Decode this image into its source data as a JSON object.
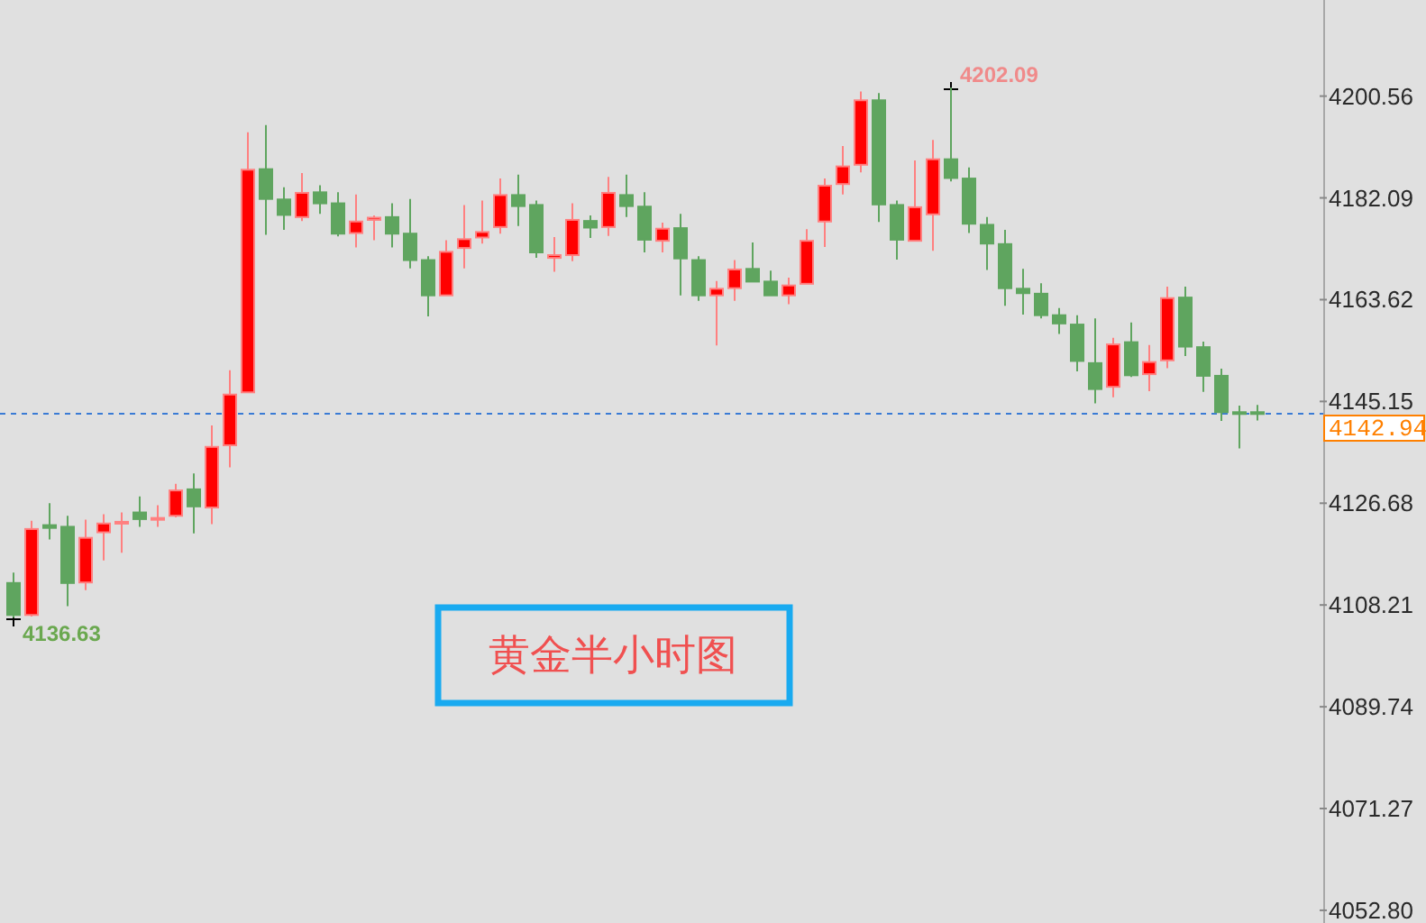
{
  "chart_data": {
    "type": "candlestick",
    "title": "黄金半小时图",
    "categories": [
      null,
      null,
      null,
      null,
      null,
      null,
      null,
      null,
      null,
      null,
      null,
      null,
      null,
      null,
      null,
      null,
      null,
      null,
      null,
      null,
      null,
      null,
      null,
      null,
      null,
      null,
      null,
      null,
      null,
      null,
      null,
      null,
      null,
      null,
      null,
      null,
      null,
      null,
      null,
      null,
      null,
      null,
      null,
      null,
      null,
      null,
      null,
      null,
      null,
      null,
      null,
      null,
      null,
      null,
      null,
      null,
      null,
      null,
      null,
      null,
      null,
      null,
      null,
      null,
      null,
      null,
      null,
      null,
      null,
      null
    ],
    "ohlc": [
      [
        4112.2,
        4114.1,
        4105.9,
        4106.4
      ],
      [
        4106.4,
        4123.5,
        4106.1,
        4122.0
      ],
      [
        4122.7,
        4126.7,
        4120.1,
        4122.2
      ],
      [
        4122.4,
        4124.4,
        4108.0,
        4112.2
      ],
      [
        4112.3,
        4123.7,
        4110.9,
        4120.4
      ],
      [
        4121.4,
        4124.7,
        4116.3,
        4123.0
      ],
      [
        4123.0,
        4125.0,
        4117.7,
        4123.3
      ],
      [
        4125.0,
        4127.9,
        4122.4,
        4123.8
      ],
      [
        4123.9,
        4126.3,
        4122.4,
        4124.0
      ],
      [
        4124.4,
        4130.2,
        4124.1,
        4129.0
      ],
      [
        4129.2,
        4132.1,
        4121.2,
        4126.1
      ],
      [
        4125.9,
        4140.8,
        4122.9,
        4136.9
      ],
      [
        4137.2,
        4150.8,
        4133.2,
        4146.4
      ],
      [
        4146.8,
        4194.0,
        4146.8,
        4187.2
      ],
      [
        4187.3,
        4195.3,
        4175.4,
        4181.9
      ],
      [
        4181.8,
        4184.0,
        4176.3,
        4179.0
      ],
      [
        4178.6,
        4186.6,
        4177.9,
        4183.0
      ],
      [
        4183.1,
        4184.4,
        4179.2,
        4181.1
      ],
      [
        4181.1,
        4183.1,
        4175.1,
        4175.6
      ],
      [
        4175.7,
        4182.7,
        4173.1,
        4177.8
      ],
      [
        4178.1,
        4178.9,
        4174.4,
        4178.5
      ],
      [
        4178.6,
        4181.1,
        4173.1,
        4175.6
      ],
      [
        4175.6,
        4181.9,
        4169.3,
        4170.8
      ],
      [
        4170.8,
        4171.5,
        4160.6,
        4164.4
      ],
      [
        4164.4,
        4174.4,
        4164.4,
        4172.3
      ],
      [
        4173.0,
        4180.8,
        4169.3,
        4174.6
      ],
      [
        4174.9,
        4181.6,
        4173.8,
        4175.9
      ],
      [
        4176.8,
        4185.6,
        4175.6,
        4182.6
      ],
      [
        4182.6,
        4186.3,
        4177.0,
        4180.6
      ],
      [
        4180.8,
        4181.6,
        4171.2,
        4172.2
      ],
      [
        4171.2,
        4175.0,
        4168.7,
        4171.7
      ],
      [
        4171.7,
        4181.1,
        4170.6,
        4178.1
      ],
      [
        4177.9,
        4178.9,
        4174.8,
        4176.7
      ],
      [
        4176.8,
        4185.9,
        4175.2,
        4183.0
      ],
      [
        4182.6,
        4186.3,
        4178.6,
        4180.6
      ],
      [
        4180.5,
        4183.1,
        4172.2,
        4174.5
      ],
      [
        4174.3,
        4177.6,
        4172.2,
        4176.5
      ],
      [
        4176.6,
        4179.2,
        4164.4,
        4171.1
      ],
      [
        4170.8,
        4171.5,
        4163.4,
        4164.4
      ],
      [
        4164.4,
        4167.0,
        4155.3,
        4165.6
      ],
      [
        4165.7,
        4170.8,
        4163.4,
        4169.1
      ],
      [
        4169.2,
        4174.0,
        4166.9,
        4166.9
      ],
      [
        4166.9,
        4168.9,
        4164.4,
        4164.4
      ],
      [
        4164.4,
        4167.6,
        4162.8,
        4166.2
      ],
      [
        4166.5,
        4176.4,
        4166.5,
        4174.3
      ],
      [
        4177.8,
        4185.6,
        4173.2,
        4184.3
      ],
      [
        4184.6,
        4191.5,
        4182.7,
        4187.8
      ],
      [
        4188.1,
        4201.4,
        4186.7,
        4199.8
      ],
      [
        4199.8,
        4201.1,
        4177.7,
        4180.9
      ],
      [
        4180.8,
        4181.6,
        4170.9,
        4174.5
      ],
      [
        4174.3,
        4188.9,
        4174.3,
        4180.4
      ],
      [
        4179.1,
        4192.6,
        4172.5,
        4189.1
      ],
      [
        4189.1,
        4202.09,
        4185.1,
        4185.7
      ],
      [
        4185.6,
        4187.6,
        4175.7,
        4177.4
      ],
      [
        4177.2,
        4178.6,
        4169.0,
        4173.8
      ],
      [
        4173.7,
        4176.3,
        4162.5,
        4165.7
      ],
      [
        4165.6,
        4169.2,
        4160.9,
        4164.8
      ],
      [
        4164.7,
        4166.6,
        4160.2,
        4160.8
      ],
      [
        4160.8,
        4162.1,
        4157.4,
        4159.3
      ],
      [
        4159.1,
        4160.8,
        4150.6,
        4152.5
      ],
      [
        4152.1,
        4160.2,
        4144.8,
        4147.4
      ],
      [
        4147.8,
        4156.7,
        4145.9,
        4155.5
      ],
      [
        4155.9,
        4159.5,
        4149.6,
        4149.9
      ],
      [
        4150.1,
        4155.4,
        4147.0,
        4152.3
      ],
      [
        4152.6,
        4166.0,
        4151.2,
        4163.9
      ],
      [
        4164.0,
        4166.0,
        4153.4,
        4155.1
      ],
      [
        4155.0,
        4156.0,
        4146.9,
        4149.8
      ],
      [
        4149.8,
        4151.1,
        4141.6,
        4143.2
      ],
      [
        4143.2,
        4144.4,
        4136.63,
        4142.9
      ],
      [
        4143.2,
        4144.5,
        4141.7,
        4142.94
      ]
    ],
    "colors": [
      "#5fa55f",
      "#ff0000",
      "#5fa55f",
      "#5fa55f",
      "#ff0000",
      "#ff0000",
      "#ff0000",
      "#5fa55f",
      "#ff0000",
      "#ff0000",
      "#5fa55f",
      "#ff0000",
      "#ff0000",
      "#ff0000",
      "#5fa55f",
      "#5fa55f",
      "#ff0000",
      "#5fa55f",
      "#5fa55f",
      "#ff0000",
      "#ff0000",
      "#5fa55f",
      "#5fa55f",
      "#5fa55f",
      "#ff0000",
      "#ff0000",
      "#ff0000",
      "#ff0000",
      "#5fa55f",
      "#5fa55f",
      "#ff0000",
      "#ff0000",
      "#5fa55f",
      "#ff0000",
      "#5fa55f",
      "#5fa55f",
      "#ff0000",
      "#5fa55f",
      "#5fa55f",
      "#ff0000",
      "#ff0000",
      "#5fa55f",
      "#5fa55f",
      "#ff0000",
      "#ff0000",
      "#ff0000",
      "#ff0000",
      "#ff0000",
      "#5fa55f",
      "#5fa55f",
      "#ff0000",
      "#ff0000",
      "#5fa55f",
      "#5fa55f",
      "#5fa55f",
      "#5fa55f",
      "#5fa55f",
      "#5fa55f",
      "#5fa55f",
      "#5fa55f",
      "#5fa55f",
      "#ff0000",
      "#5fa55f",
      "#ff0000",
      "#ff0000",
      "#5fa55f",
      "#5fa55f",
      "#5fa55f",
      "#5fa55f",
      "#5fa55f"
    ],
    "ylim": [
      4050.5,
      4218
    ],
    "yticks": [
      {
        "value": 4052.8,
        "label": "4052.80"
      },
      4071.27,
      4089.74,
      4108.21,
      4126.68,
      4145.15,
      4163.62,
      4182.09,
      4200.56
    ],
    "ref_lines": [
      {
        "axis": "y",
        "value": 4142.94,
        "label": "4142.94",
        "color": "#3a7bd5",
        "line_style": "dashed"
      }
    ],
    "annotations": [
      "4202.09",
      "4136.63"
    ]
  }
}
